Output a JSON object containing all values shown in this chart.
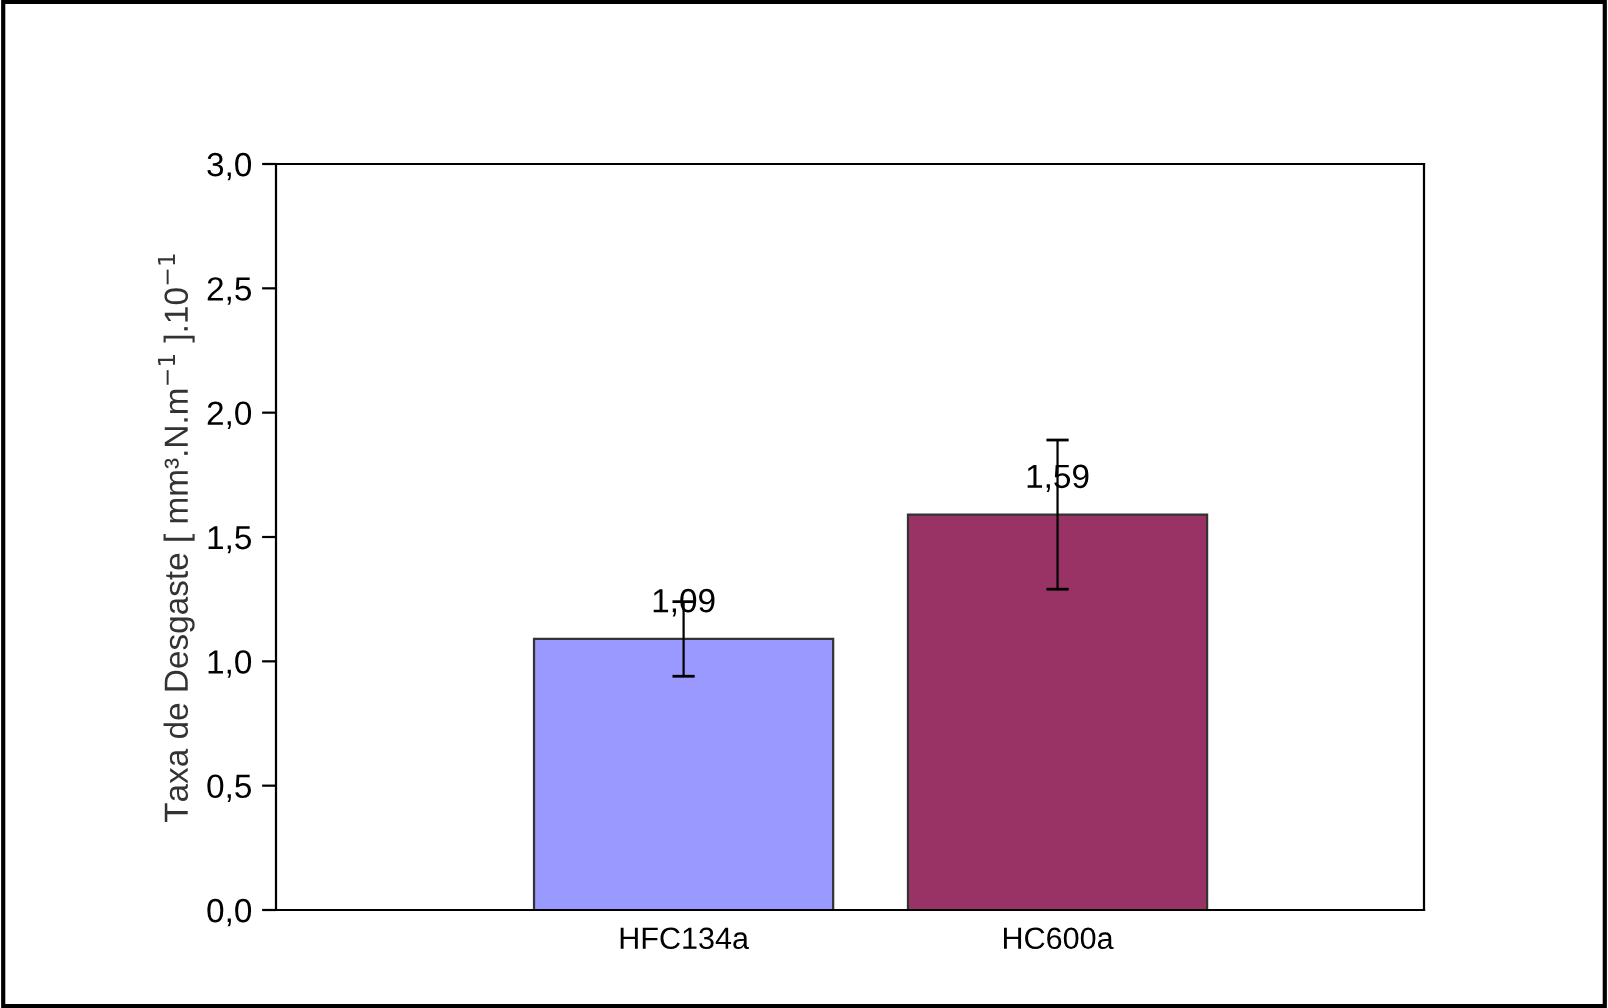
{
  "chart_data": {
    "type": "bar",
    "ylabel": "Taxa de Desgaste [ mm³.N.m$^{−1}$ ].10$^{−1}$",
    "categories": [
      "HFC134a",
      "HC600a"
    ],
    "values": [
      1.09,
      1.59
    ],
    "colors": [
      "#9999ff",
      "#993366"
    ],
    "errors": [
      0.15,
      0.3
    ],
    "value_labels": [
      "1,09",
      "1,59"
    ],
    "ylim": [
      0,
      3.0
    ],
    "yticks": [
      {
        "value": 0,
        "label": "0,0"
      },
      {
        "value": 0.5,
        "label": "0,5"
      },
      {
        "value": 1.0,
        "label": "1,0"
      },
      {
        "value": 1.5,
        "label": "1,5"
      },
      {
        "value": 2.0,
        "label": "2,0"
      },
      {
        "value": 2.5,
        "label": "2,5"
      },
      {
        "value": 3.0,
        "label": "3,0"
      }
    ],
    "grid": false
  }
}
